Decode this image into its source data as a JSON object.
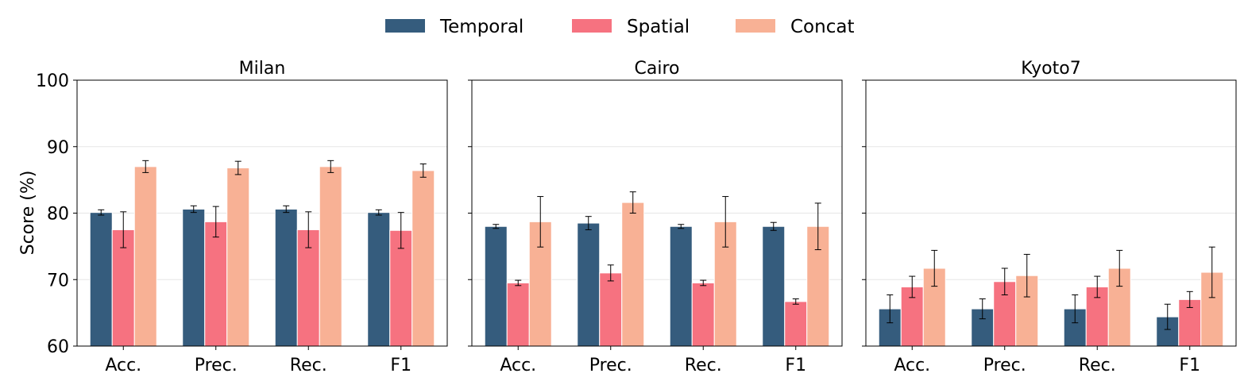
{
  "legend": {
    "items": [
      {
        "label": "Temporal",
        "color": "#355c7d"
      },
      {
        "label": "Spatial",
        "color": "#f67280"
      },
      {
        "label": "Concat",
        "color": "#f8b195"
      }
    ]
  },
  "ylabel": "Score (%)",
  "chart_data": [
    {
      "type": "bar",
      "title": "Milan",
      "categories": [
        "Acc.",
        "Prec.",
        "Rec.",
        "F1"
      ],
      "ylim": [
        60,
        100
      ],
      "yticks": [
        "60",
        "70",
        "80",
        "90",
        "100"
      ],
      "grid": true,
      "series": [
        {
          "name": "Temporal",
          "values": [
            80.1,
            80.6,
            80.6,
            80.1
          ],
          "errors": [
            0.4,
            0.5,
            0.5,
            0.4
          ]
        },
        {
          "name": "Spatial",
          "values": [
            77.5,
            78.7,
            77.5,
            77.4
          ],
          "errors": [
            2.7,
            2.3,
            2.7,
            2.7
          ]
        },
        {
          "name": "Concat",
          "values": [
            87.0,
            86.8,
            87.0,
            86.4
          ],
          "errors": [
            0.9,
            1.0,
            0.9,
            1.0
          ]
        }
      ]
    },
    {
      "type": "bar",
      "title": "Cairo",
      "categories": [
        "Acc.",
        "Prec.",
        "Rec.",
        "F1"
      ],
      "ylim": [
        60,
        100
      ],
      "yticks": [
        "60",
        "70",
        "80",
        "90",
        "100"
      ],
      "grid": true,
      "series": [
        {
          "name": "Temporal",
          "values": [
            78.0,
            78.5,
            78.0,
            78.0
          ],
          "errors": [
            0.3,
            1.0,
            0.3,
            0.6
          ]
        },
        {
          "name": "Spatial",
          "values": [
            69.5,
            71.0,
            69.5,
            66.7
          ],
          "errors": [
            0.4,
            1.2,
            0.4,
            0.4
          ]
        },
        {
          "name": "Concat",
          "values": [
            78.7,
            81.6,
            78.7,
            78.0
          ],
          "errors": [
            3.8,
            1.6,
            3.8,
            3.5
          ]
        }
      ]
    },
    {
      "type": "bar",
      "title": "Kyoto7",
      "categories": [
        "Acc.",
        "Prec.",
        "Rec.",
        "F1"
      ],
      "ylim": [
        60,
        100
      ],
      "yticks": [
        "60",
        "70",
        "80",
        "90",
        "100"
      ],
      "grid": true,
      "series": [
        {
          "name": "Temporal",
          "values": [
            65.6,
            65.6,
            65.6,
            64.4
          ],
          "errors": [
            2.1,
            1.5,
            2.1,
            1.9
          ]
        },
        {
          "name": "Spatial",
          "values": [
            68.9,
            69.7,
            68.9,
            67.0
          ],
          "errors": [
            1.6,
            2.0,
            1.6,
            1.2
          ]
        },
        {
          "name": "Concat",
          "values": [
            71.7,
            70.6,
            71.7,
            71.1
          ],
          "errors": [
            2.7,
            3.2,
            2.7,
            3.8
          ]
        }
      ]
    }
  ]
}
